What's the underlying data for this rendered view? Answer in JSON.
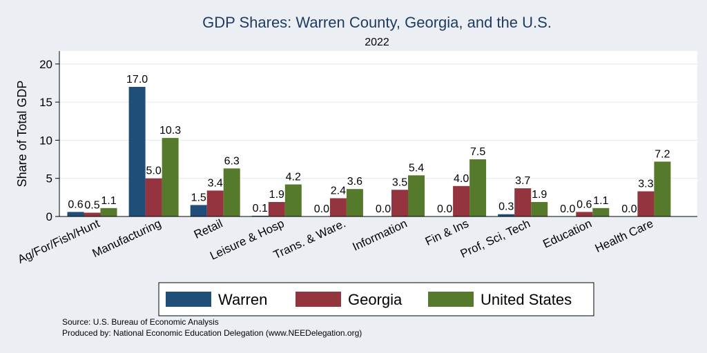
{
  "chart_data": {
    "type": "bar",
    "title": "GDP Shares: Warren County, Georgia, and the U.S.",
    "subtitle": "2022",
    "ylabel": "Share of Total GDP",
    "xlabel": "",
    "ylim": [
      0,
      21.7
    ],
    "yticks": [
      0,
      5,
      10,
      15,
      20
    ],
    "grid": true,
    "legend_position": "bottom",
    "categories": [
      "Ag/For/Fish/Hunt",
      "Manufacturing",
      "Retail",
      "Leisure & Hosp",
      "Trans. & Ware.",
      "Information",
      "Fin & Ins",
      "Prof, Sci, Tech",
      "Education",
      "Health Care"
    ],
    "series": [
      {
        "name": "Warren",
        "color": "#1f4e79",
        "values": [
          0.6,
          17.0,
          1.5,
          0.1,
          0.0,
          0.0,
          0.0,
          0.3,
          0.0,
          0.0
        ],
        "labels": [
          "0.6",
          "17.0",
          "1.5",
          "0.1",
          "0.0",
          "0.0",
          "0.0",
          "0.3",
          "0.0",
          "0.0"
        ]
      },
      {
        "name": "Georgia",
        "color": "#93343e",
        "values": [
          0.5,
          5.0,
          3.4,
          1.9,
          2.4,
          3.5,
          4.0,
          3.7,
          0.6,
          3.3
        ],
        "labels": [
          "0.5",
          "5.0",
          "3.4",
          "1.9",
          "2.4",
          "3.5",
          "4.0",
          "3.7",
          "0.6",
          "3.3"
        ]
      },
      {
        "name": "United States",
        "color": "#557a2c",
        "values": [
          1.1,
          10.3,
          6.3,
          4.2,
          3.6,
          5.4,
          7.5,
          1.9,
          1.1,
          7.2
        ],
        "labels": [
          "1.1",
          "10.3",
          "6.3",
          "4.2",
          "3.6",
          "5.4",
          "7.5",
          "1.9",
          "1.1",
          "7.2"
        ]
      }
    ]
  },
  "footer": {
    "source": "Source: U.S. Bureau of Economic Analysis",
    "produced_by": "Produced by: National Economic Education Delegation (www.NEEDelegation.org)"
  }
}
